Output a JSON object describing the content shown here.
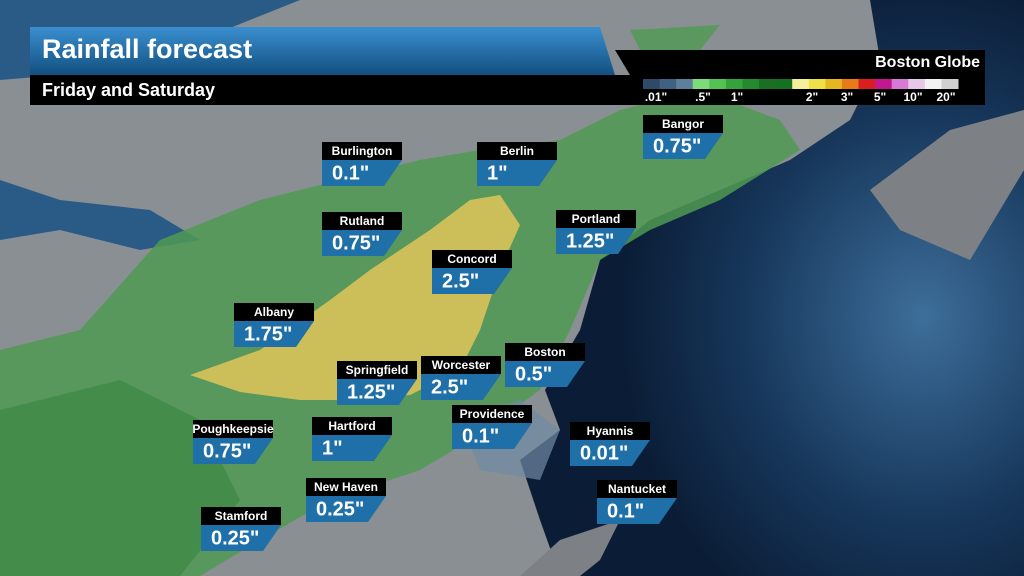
{
  "header": {
    "title": "Rainfall forecast",
    "subtitle": "Friday and Saturday",
    "source": "Boston Globe"
  },
  "legend": {
    "labels": [
      ".01\"",
      ".5\"",
      "1\"",
      "2\"",
      "3\"",
      "5\"",
      "10\"",
      "20\""
    ]
  },
  "cities": [
    {
      "name": "Burlington",
      "amount": "0.1\""
    },
    {
      "name": "Berlin",
      "amount": "1\""
    },
    {
      "name": "Bangor",
      "amount": "0.75\""
    },
    {
      "name": "Rutland",
      "amount": "0.75\""
    },
    {
      "name": "Portland",
      "amount": "1.25\""
    },
    {
      "name": "Concord",
      "amount": "2.5\""
    },
    {
      "name": "Albany",
      "amount": "1.75\""
    },
    {
      "name": "Springfield",
      "amount": "1.25\""
    },
    {
      "name": "Worcester",
      "amount": "2.5\""
    },
    {
      "name": "Boston",
      "amount": "0.5\""
    },
    {
      "name": "Providence",
      "amount": "0.1\""
    },
    {
      "name": "Hartford",
      "amount": "1\""
    },
    {
      "name": "Poughkeepsie",
      "amount": "0.75\""
    },
    {
      "name": "Hyannis",
      "amount": "0.01\""
    },
    {
      "name": "New Haven",
      "amount": "0.25\""
    },
    {
      "name": "Nantucket",
      "amount": "0.1\""
    },
    {
      "name": "Stamford",
      "amount": "0.25\""
    }
  ]
}
